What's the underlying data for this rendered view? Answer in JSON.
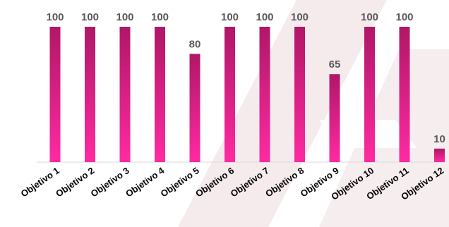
{
  "chart_data": {
    "type": "bar",
    "categories": [
      "Objetivo 1",
      "Objetivo 2",
      "Objetivo 3",
      "Objetivo 4",
      "Objetivo 5",
      "Objetivo 6",
      "Objetivo 7",
      "Objetivo 8",
      "Objetivo 9",
      "Objetivo 10",
      "Objetivo 11",
      "Objetivo 12"
    ],
    "values": [
      100,
      100,
      100,
      100,
      80,
      100,
      100,
      100,
      65,
      100,
      100,
      10
    ],
    "title": "",
    "xlabel": "",
    "ylabel": "",
    "ylim": [
      0,
      100
    ],
    "grid": false,
    "legend": "none",
    "colors": {
      "bar_top": "#b01767",
      "bar_bottom": "#ff2aa2",
      "value_label": "#595959",
      "category_label": "#000000",
      "axis": "#d9d9d9",
      "watermark": "#f3e7ea"
    }
  }
}
